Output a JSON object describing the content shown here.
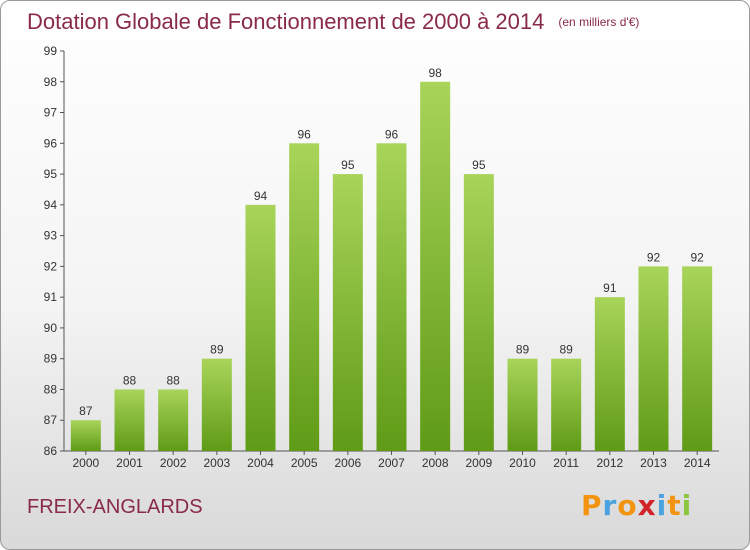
{
  "title": "Dotation Globale de Fonctionnement de 2000 à 2014",
  "unit_note": "(en milliers d'€)",
  "commune": "FREIX-ANGLARDS",
  "logo": {
    "letters": [
      "P",
      "r",
      "o",
      "x",
      "i",
      "t",
      "i"
    ],
    "colors": [
      "#f29410",
      "#4aa3df",
      "#f29410",
      "#d2232a",
      "#4aa3df",
      "#f29410",
      "#8cc63f"
    ]
  },
  "colors": {
    "bar_light": "#a8d45a",
    "bar_dark": "#5f9b16",
    "title": "#8a2a4a"
  },
  "chart_data": {
    "type": "bar",
    "title": "Dotation Globale de Fonctionnement de 2000 à 2014",
    "xlabel": "",
    "ylabel": "",
    "categories": [
      "2000",
      "2001",
      "2002",
      "2003",
      "2004",
      "2005",
      "2006",
      "2007",
      "2008",
      "2009",
      "2010",
      "2011",
      "2012",
      "2013",
      "2014"
    ],
    "values": [
      87,
      88,
      88,
      89,
      94,
      96,
      95,
      96,
      98,
      95,
      89,
      89,
      91,
      92,
      92
    ],
    "ylim": [
      86,
      99
    ],
    "yticks": [
      86,
      87,
      88,
      89,
      90,
      91,
      92,
      93,
      94,
      95,
      96,
      97,
      98,
      99
    ],
    "grid": false
  }
}
